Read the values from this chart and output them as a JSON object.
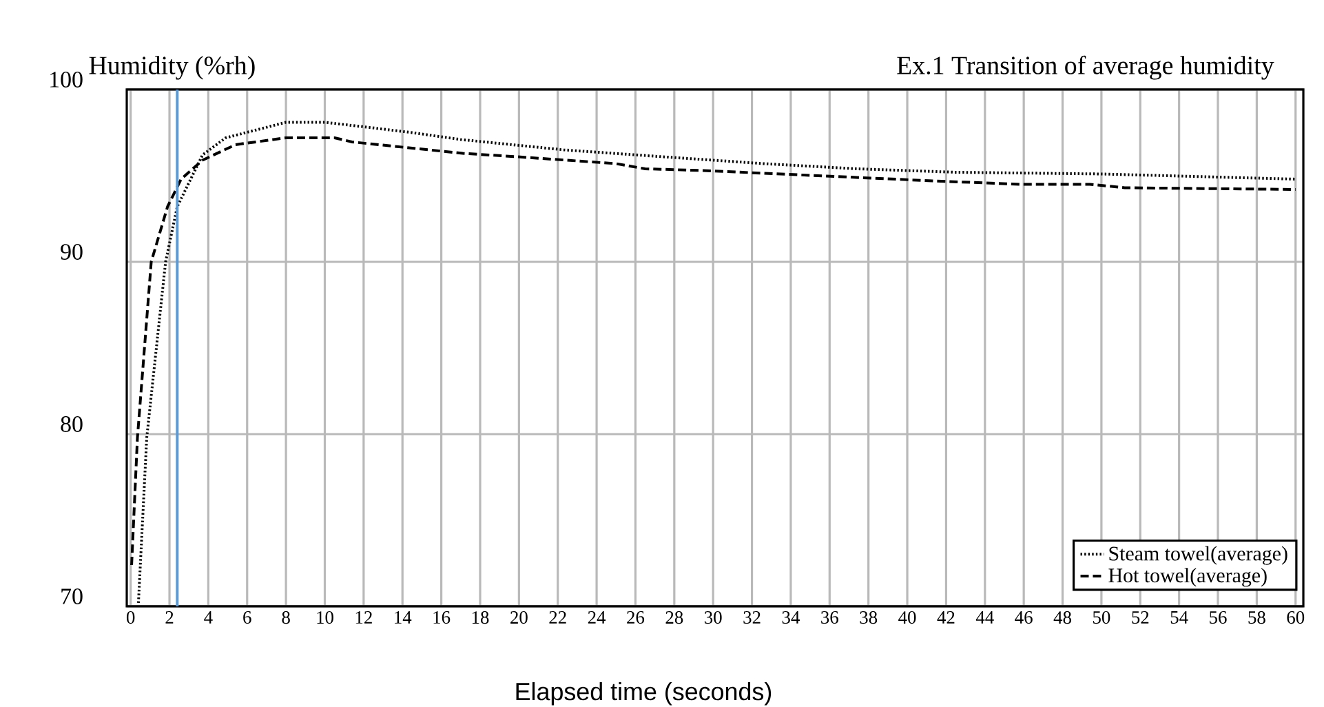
{
  "chart_data": {
    "type": "line",
    "title": "Ex.1 Transition of average humidity",
    "xlabel": "Elapsed time (seconds)",
    "ylabel": "Humidity (%rh)",
    "xlim": [
      -0.2,
      60.4
    ],
    "ylim": [
      70,
      100
    ],
    "xticks": [
      0,
      2,
      4,
      6,
      8,
      10,
      12,
      14,
      16,
      18,
      20,
      22,
      24,
      26,
      28,
      30,
      32,
      34,
      36,
      38,
      40,
      42,
      44,
      46,
      48,
      50,
      52,
      54,
      56,
      58,
      60
    ],
    "yticks": [
      70,
      80,
      90,
      100
    ],
    "grid": true,
    "legend": "bottom right",
    "ref_lines": [
      {
        "axis": "x",
        "value": 2.4,
        "color": "#5b9bd5"
      }
    ],
    "series": [
      {
        "name": "Steam towel(average)",
        "color": "#000000",
        "line_style": "dotted",
        "x": [
          0.4,
          0.83,
          1.8,
          2.4,
          3.7,
          4.9,
          8,
          10,
          12.3,
          14.5,
          17,
          22.3,
          27.4,
          32.6,
          37.4,
          42.5,
          50,
          60
        ],
        "values": [
          70.2,
          79.8,
          90,
          93.2,
          96.2,
          97.2,
          98.1,
          98.1,
          97.8,
          97.5,
          97.1,
          96.5,
          96.1,
          95.7,
          95.4,
          95.2,
          95.1,
          94.8
        ]
      },
      {
        "name": "Hot towel(average)",
        "color": "#000000",
        "line_style": "dashed",
        "x": [
          0.05,
          0.35,
          1.06,
          1.9,
          2.6,
          3.7,
          5.4,
          8,
          10.5,
          11.4,
          14.5,
          17.1,
          19.9,
          25,
          26.5,
          29.5,
          35.4,
          41.3,
          45.8,
          49.4,
          51.2,
          60
        ],
        "values": [
          72.4,
          79.8,
          90,
          93.2,
          94.8,
          95.9,
          96.8,
          97.2,
          97.2,
          96.96,
          96.6,
          96.3,
          96.1,
          95.7,
          95.4,
          95.3,
          95.0,
          94.7,
          94.5,
          94.5,
          94.3,
          94.2
        ]
      }
    ]
  }
}
